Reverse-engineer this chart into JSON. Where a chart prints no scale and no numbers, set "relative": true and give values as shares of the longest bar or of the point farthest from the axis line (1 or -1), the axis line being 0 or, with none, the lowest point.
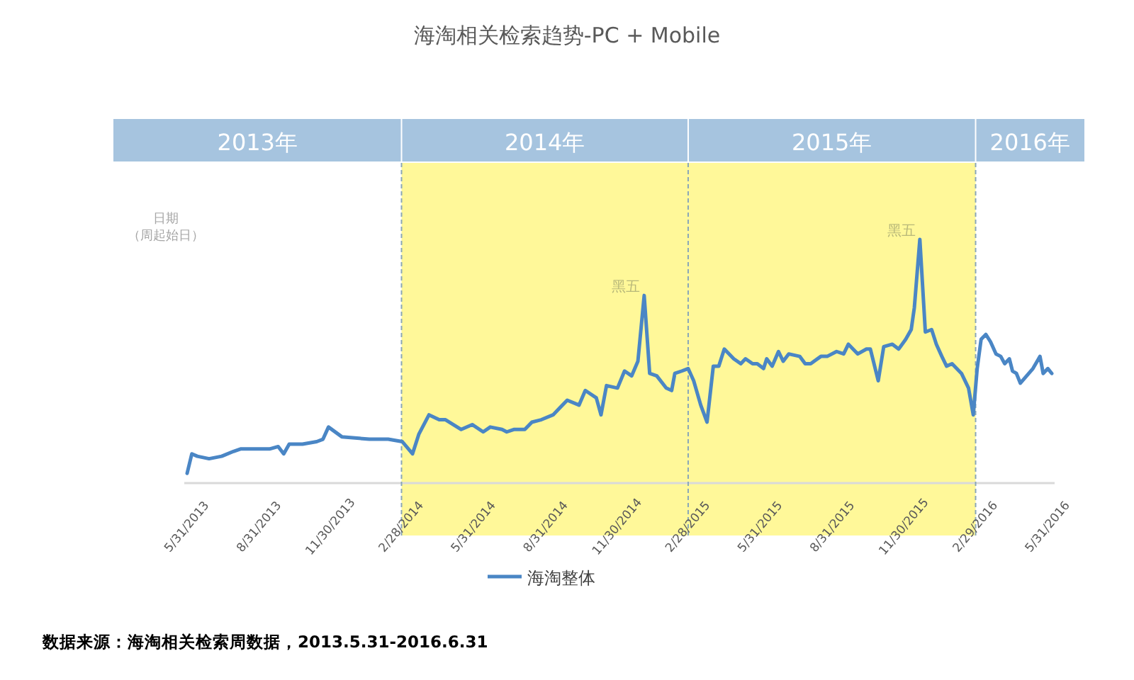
{
  "chart_data": {
    "type": "line",
    "title": "海淘相关检索趋势-PC + Mobile",
    "relative": true,
    "legend": "bottom",
    "marker": "none",
    "line_style": "solid",
    "xlim": [
      "2013-05-31",
      "2016-06-05"
    ],
    "xticks": [
      {
        "value": "2013-05-31",
        "label": "5/31/2013"
      },
      {
        "value": "2013-08-31",
        "label": "8/31/2013"
      },
      {
        "value": "2013-11-30",
        "label": "11/30/2013"
      },
      {
        "value": "2014-02-28",
        "label": "2/28/2014"
      },
      {
        "value": "2014-05-31",
        "label": "5/31/2014"
      },
      {
        "value": "2014-08-31",
        "label": "8/31/2014"
      },
      {
        "value": "2014-11-30",
        "label": "11/30/2014"
      },
      {
        "value": "2015-02-28",
        "label": "2/28/2015"
      },
      {
        "value": "2015-05-31",
        "label": "5/31/2015"
      },
      {
        "value": "2015-08-31",
        "label": "8/31/2015"
      },
      {
        "value": "2015-11-30",
        "label": "11/30/2015"
      },
      {
        "value": "2016-02-29",
        "label": "2/29/2016"
      },
      {
        "value": "2016-05-31",
        "label": "5/31/2016"
      }
    ],
    "bands": [
      {
        "axis": "x",
        "from": "2014-02-28",
        "to": "2016-02-29",
        "color": "#fff899"
      }
    ],
    "ref_lines": [
      {
        "axis": "x",
        "value": "2014-02-28",
        "color": "#8aa7b8",
        "line_style": "dashed"
      },
      {
        "axis": "x",
        "value": "2015-02-28",
        "color": "#8aa7b8",
        "line_style": "dashed"
      },
      {
        "axis": "x",
        "value": "2016-02-29",
        "color": "#8aa7b8",
        "line_style": "dashed"
      }
    ],
    "annotations": [
      "2013年",
      "2014年",
      "2015年",
      "2016年",
      "日期",
      "（周起始日）",
      {
        "text": "黑五",
        "x": "2015-01-03",
        "y": 0.77
      },
      {
        "text": "黑五",
        "x": "2015-12-20",
        "y": 1.0
      },
      "数据来源：海淘相关检索周数据，2013.5.31-2016.6.31"
    ],
    "series": [
      {
        "name": "海淘整体",
        "color": "#4a86c5",
        "x": [
          "2013-05-31",
          "2013-06-06",
          "2013-06-13",
          "2013-06-28",
          "2013-07-14",
          "2013-07-29",
          "2013-08-07",
          "2013-08-25",
          "2013-09-13",
          "2013-09-24",
          "2013-10-01",
          "2013-10-08",
          "2013-10-25",
          "2013-11-12",
          "2013-11-20",
          "2013-11-27",
          "2013-12-14",
          "2014-01-18",
          "2014-02-11",
          "2014-03-01",
          "2014-03-14",
          "2014-03-22",
          "2014-04-04",
          "2014-04-17",
          "2014-04-25",
          "2014-05-15",
          "2014-05-29",
          "2014-06-12",
          "2014-06-21",
          "2014-07-06",
          "2014-07-12",
          "2014-07-21",
          "2014-08-04",
          "2014-08-13",
          "2014-08-25",
          "2014-09-09",
          "2014-09-18",
          "2014-09-27",
          "2014-10-12",
          "2014-10-20",
          "2014-11-03",
          "2014-11-09",
          "2014-11-16",
          "2014-11-30",
          "2014-12-09",
          "2014-12-18",
          "2014-12-26",
          "2015-01-03",
          "2015-01-10",
          "2015-01-19",
          "2015-01-31",
          "2015-02-07",
          "2015-02-11",
          "2015-02-20",
          "2015-02-28",
          "2015-03-07",
          "2015-03-16",
          "2015-03-24",
          "2015-04-01",
          "2015-04-08",
          "2015-04-15",
          "2015-04-27",
          "2015-05-06",
          "2015-05-12",
          "2015-05-21",
          "2015-05-27",
          "2015-06-04",
          "2015-06-08",
          "2015-06-15",
          "2015-06-23",
          "2015-06-29",
          "2015-07-06",
          "2015-07-20",
          "2015-07-27",
          "2015-08-03",
          "2015-08-16",
          "2015-08-24",
          "2015-09-05",
          "2015-09-14",
          "2015-09-20",
          "2015-10-02",
          "2015-10-13",
          "2015-10-18",
          "2015-10-28",
          "2015-11-04",
          "2015-11-15",
          "2015-11-23",
          "2015-12-02",
          "2015-12-09",
          "2015-12-13",
          "2015-12-20",
          "2015-12-27",
          "2016-01-04",
          "2016-01-10",
          "2016-01-17",
          "2016-01-23",
          "2016-01-30",
          "2016-02-11",
          "2016-02-20",
          "2016-02-26",
          "2016-03-02",
          "2016-03-07",
          "2016-03-13",
          "2016-03-19",
          "2016-03-26",
          "2016-04-01",
          "2016-04-06",
          "2016-04-12",
          "2016-04-16",
          "2016-04-21",
          "2016-04-26",
          "2016-05-04",
          "2016-05-12",
          "2016-05-21",
          "2016-05-25",
          "2016-05-31",
          "2016-06-05"
        ],
        "values": [
          0.04,
          0.12,
          0.11,
          0.1,
          0.11,
          0.13,
          0.14,
          0.14,
          0.14,
          0.15,
          0.12,
          0.16,
          0.16,
          0.17,
          0.18,
          0.23,
          0.19,
          0.18,
          0.18,
          0.17,
          0.12,
          0.2,
          0.28,
          0.26,
          0.26,
          0.22,
          0.24,
          0.21,
          0.23,
          0.22,
          0.21,
          0.22,
          0.22,
          0.25,
          0.26,
          0.28,
          0.31,
          0.34,
          0.32,
          0.38,
          0.35,
          0.28,
          0.4,
          0.39,
          0.46,
          0.44,
          0.5,
          0.77,
          0.45,
          0.44,
          0.39,
          0.38,
          0.45,
          0.46,
          0.47,
          0.42,
          0.32,
          0.25,
          0.48,
          0.48,
          0.55,
          0.51,
          0.49,
          0.51,
          0.49,
          0.49,
          0.47,
          0.51,
          0.48,
          0.54,
          0.5,
          0.53,
          0.52,
          0.49,
          0.49,
          0.52,
          0.52,
          0.54,
          0.53,
          0.57,
          0.53,
          0.55,
          0.55,
          0.42,
          0.56,
          0.57,
          0.55,
          0.59,
          0.63,
          0.72,
          1.0,
          0.62,
          0.63,
          0.57,
          0.52,
          0.48,
          0.49,
          0.45,
          0.39,
          0.28,
          0.47,
          0.59,
          0.61,
          0.58,
          0.53,
          0.52,
          0.49,
          0.51,
          0.46,
          0.45,
          0.41,
          0.44,
          0.47,
          0.52,
          0.45,
          0.47,
          0.45
        ]
      }
    ]
  }
}
